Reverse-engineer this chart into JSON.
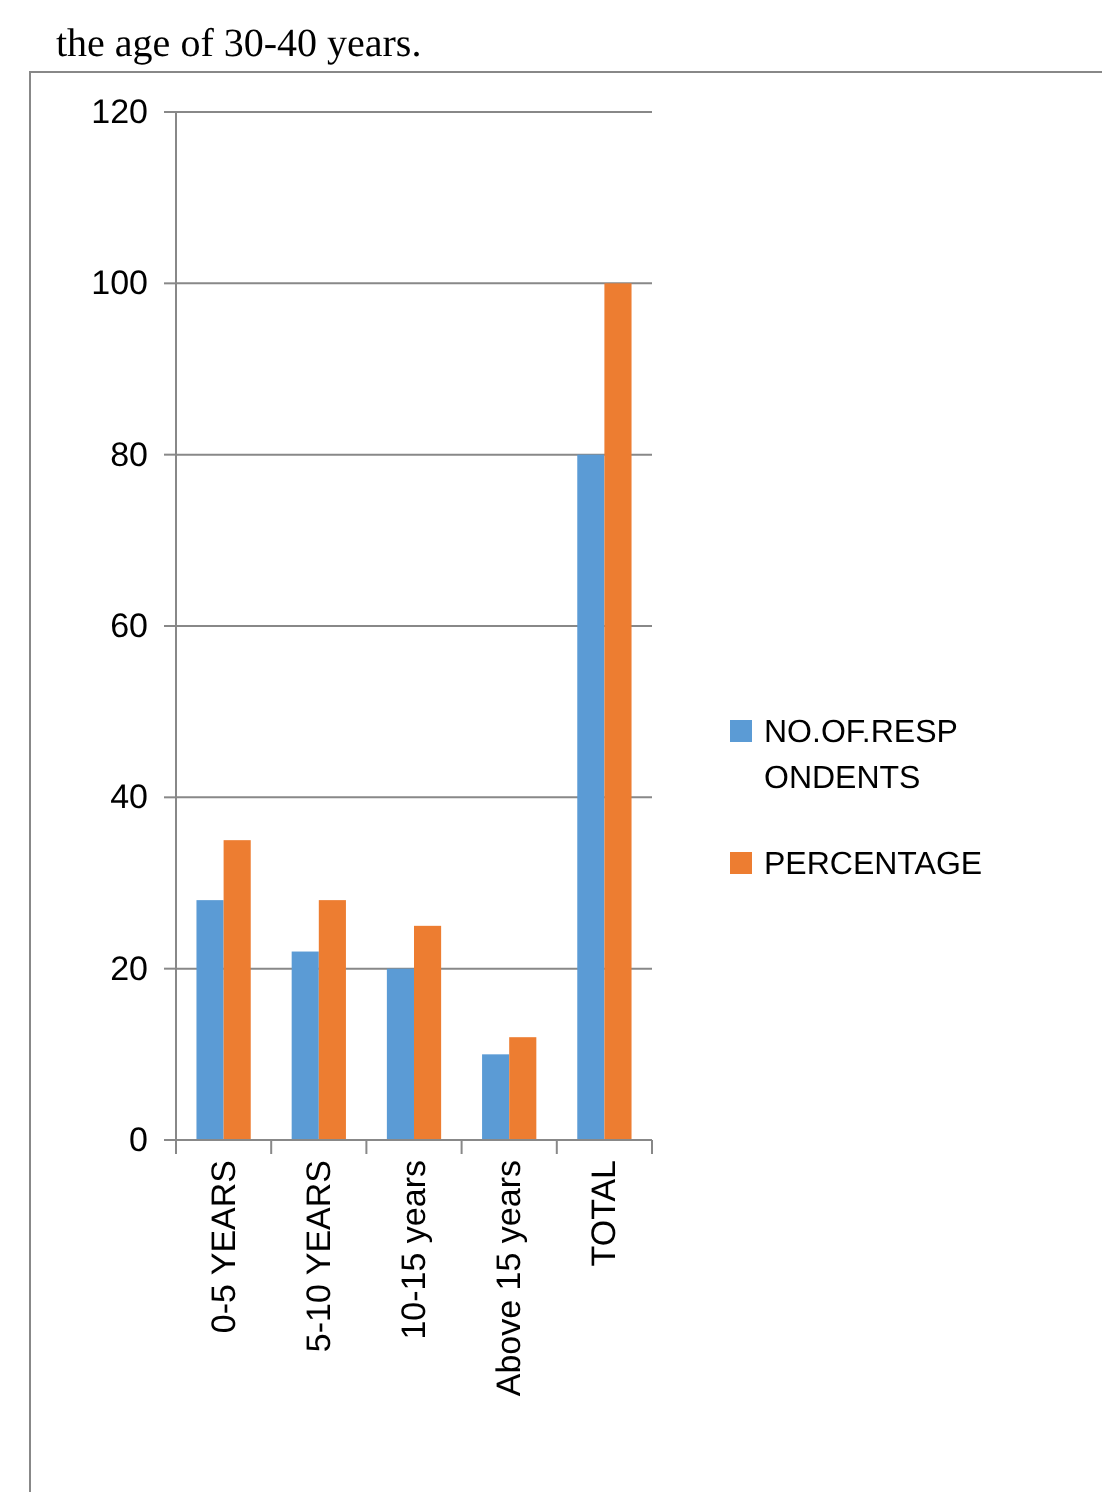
{
  "chart_data": {
    "type": "bar",
    "annotations": [
      "the age of 30-40 years."
    ],
    "categories": [
      "0-5 YEARS",
      "5-10 YEARS",
      "10-15 years",
      "Above 15 years",
      "TOTAL"
    ],
    "series": [
      {
        "name": "NO.OF.RESPONDENTS",
        "color": "#5b9bd5",
        "values": [
          28,
          22,
          20,
          10,
          80
        ]
      },
      {
        "name": "PERCENTAGE",
        "color": "#ed7d31",
        "values": [
          35,
          28,
          25,
          12,
          100
        ]
      }
    ],
    "ylim": [
      0,
      120
    ],
    "yticks": [
      0,
      20,
      40,
      60,
      80,
      100,
      120
    ],
    "grid": "y",
    "legend": "right"
  }
}
